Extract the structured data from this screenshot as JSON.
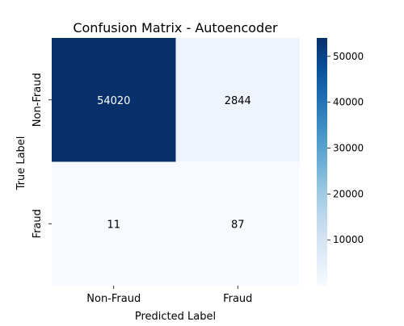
{
  "chart_data": {
    "type": "heatmap",
    "title": "Confusion Matrix - Autoencoder",
    "xlabel": "Predicted Label",
    "ylabel": "True Label",
    "rows": [
      "Non-Fraud",
      "Fraud"
    ],
    "columns": [
      "Non-Fraud",
      "Fraud"
    ],
    "values": [
      [
        54020,
        2844
      ],
      [
        11,
        87
      ]
    ],
    "colormap": "Blues",
    "colorbar": {
      "range": [
        11,
        54020
      ],
      "ticks": [
        10000,
        20000,
        30000,
        40000,
        50000
      ],
      "tick_labels": [
        "10000",
        "20000",
        "30000",
        "40000",
        "50000"
      ]
    }
  }
}
